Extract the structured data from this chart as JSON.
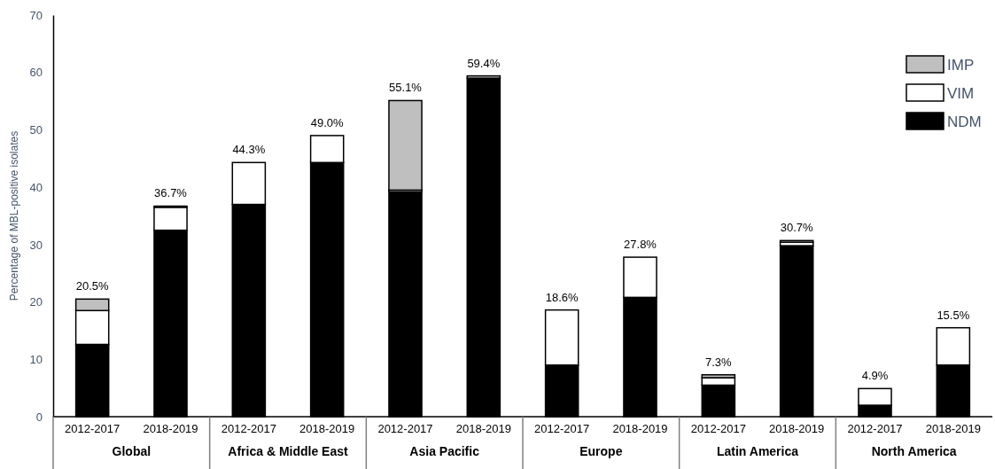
{
  "chart_data": {
    "type": "bar",
    "stacked": true,
    "ylabel": "Percentage of MBL-positive isolates",
    "categories": [
      "2012-2017",
      "2018-2019",
      "2012-2017",
      "2018-2019",
      "2012-2017",
      "2018-2019",
      "2012-2017",
      "2018-2019",
      "2012-2017",
      "2018-2019",
      "2012-2017",
      "2018-2019"
    ],
    "series": [
      {
        "name": "NDM",
        "color": "#000000",
        "values": [
          12.6,
          32.5,
          37.0,
          44.3,
          39.2,
          59.0,
          9.0,
          20.8,
          5.5,
          29.8,
          2.0,
          9.0
        ]
      },
      {
        "name": "VIM",
        "color": "#ffffff",
        "values": [
          5.9,
          4.0,
          7.3,
          4.7,
          0.3,
          0,
          9.6,
          7.0,
          1.3,
          0.6,
          2.9,
          6.5
        ]
      },
      {
        "name": "IMP",
        "color": "#bfbfbf",
        "values": [
          2.0,
          0.2,
          0,
          0,
          15.6,
          0.4,
          0,
          0,
          0.5,
          0.3,
          0,
          0
        ]
      }
    ],
    "totals": [
      "20.5%",
      "36.7%",
      "44.3%",
      "49.0%",
      "55.1%",
      "59.4%",
      "18.6%",
      "27.8%",
      "7.3%",
      "30.7%",
      "4.9%",
      "15.5%"
    ],
    "annotations": [
      "Global",
      "Africa & Middle East",
      "Asia Pacific",
      "Europe",
      "Latin America",
      "North America"
    ],
    "ylim": [
      0,
      70
    ],
    "yticks": [
      0,
      10,
      20,
      30,
      40,
      50,
      60,
      70
    ],
    "grid": false,
    "legend": "top right"
  }
}
